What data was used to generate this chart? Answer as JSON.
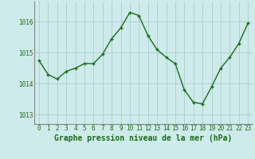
{
  "x": [
    0,
    1,
    2,
    3,
    4,
    5,
    6,
    7,
    8,
    9,
    10,
    11,
    12,
    13,
    14,
    15,
    16,
    17,
    18,
    19,
    20,
    21,
    22,
    23
  ],
  "y": [
    1014.75,
    1014.3,
    1014.15,
    1014.4,
    1014.5,
    1014.65,
    1014.65,
    1014.95,
    1015.45,
    1015.8,
    1016.3,
    1016.2,
    1015.55,
    1015.1,
    1014.85,
    1014.65,
    1013.8,
    1013.4,
    1013.35,
    1013.9,
    1014.5,
    1014.85,
    1015.3,
    1015.95
  ],
  "line_color": "#1a6b1a",
  "marker": "+",
  "bg_color": "#ceeaea",
  "grid_color": "#aacece",
  "xlabel": "Graphe pression niveau de la mer (hPa)",
  "yticks": [
    1013,
    1014,
    1015,
    1016
  ],
  "xticks": [
    0,
    1,
    2,
    3,
    4,
    5,
    6,
    7,
    8,
    9,
    10,
    11,
    12,
    13,
    14,
    15,
    16,
    17,
    18,
    19,
    20,
    21,
    22,
    23
  ],
  "ylim": [
    1012.7,
    1016.65
  ],
  "xlim": [
    -0.5,
    23.5
  ],
  "tick_fontsize": 5.5,
  "xlabel_fontsize": 7.0,
  "linewidth": 1.0,
  "markersize": 3.5
}
